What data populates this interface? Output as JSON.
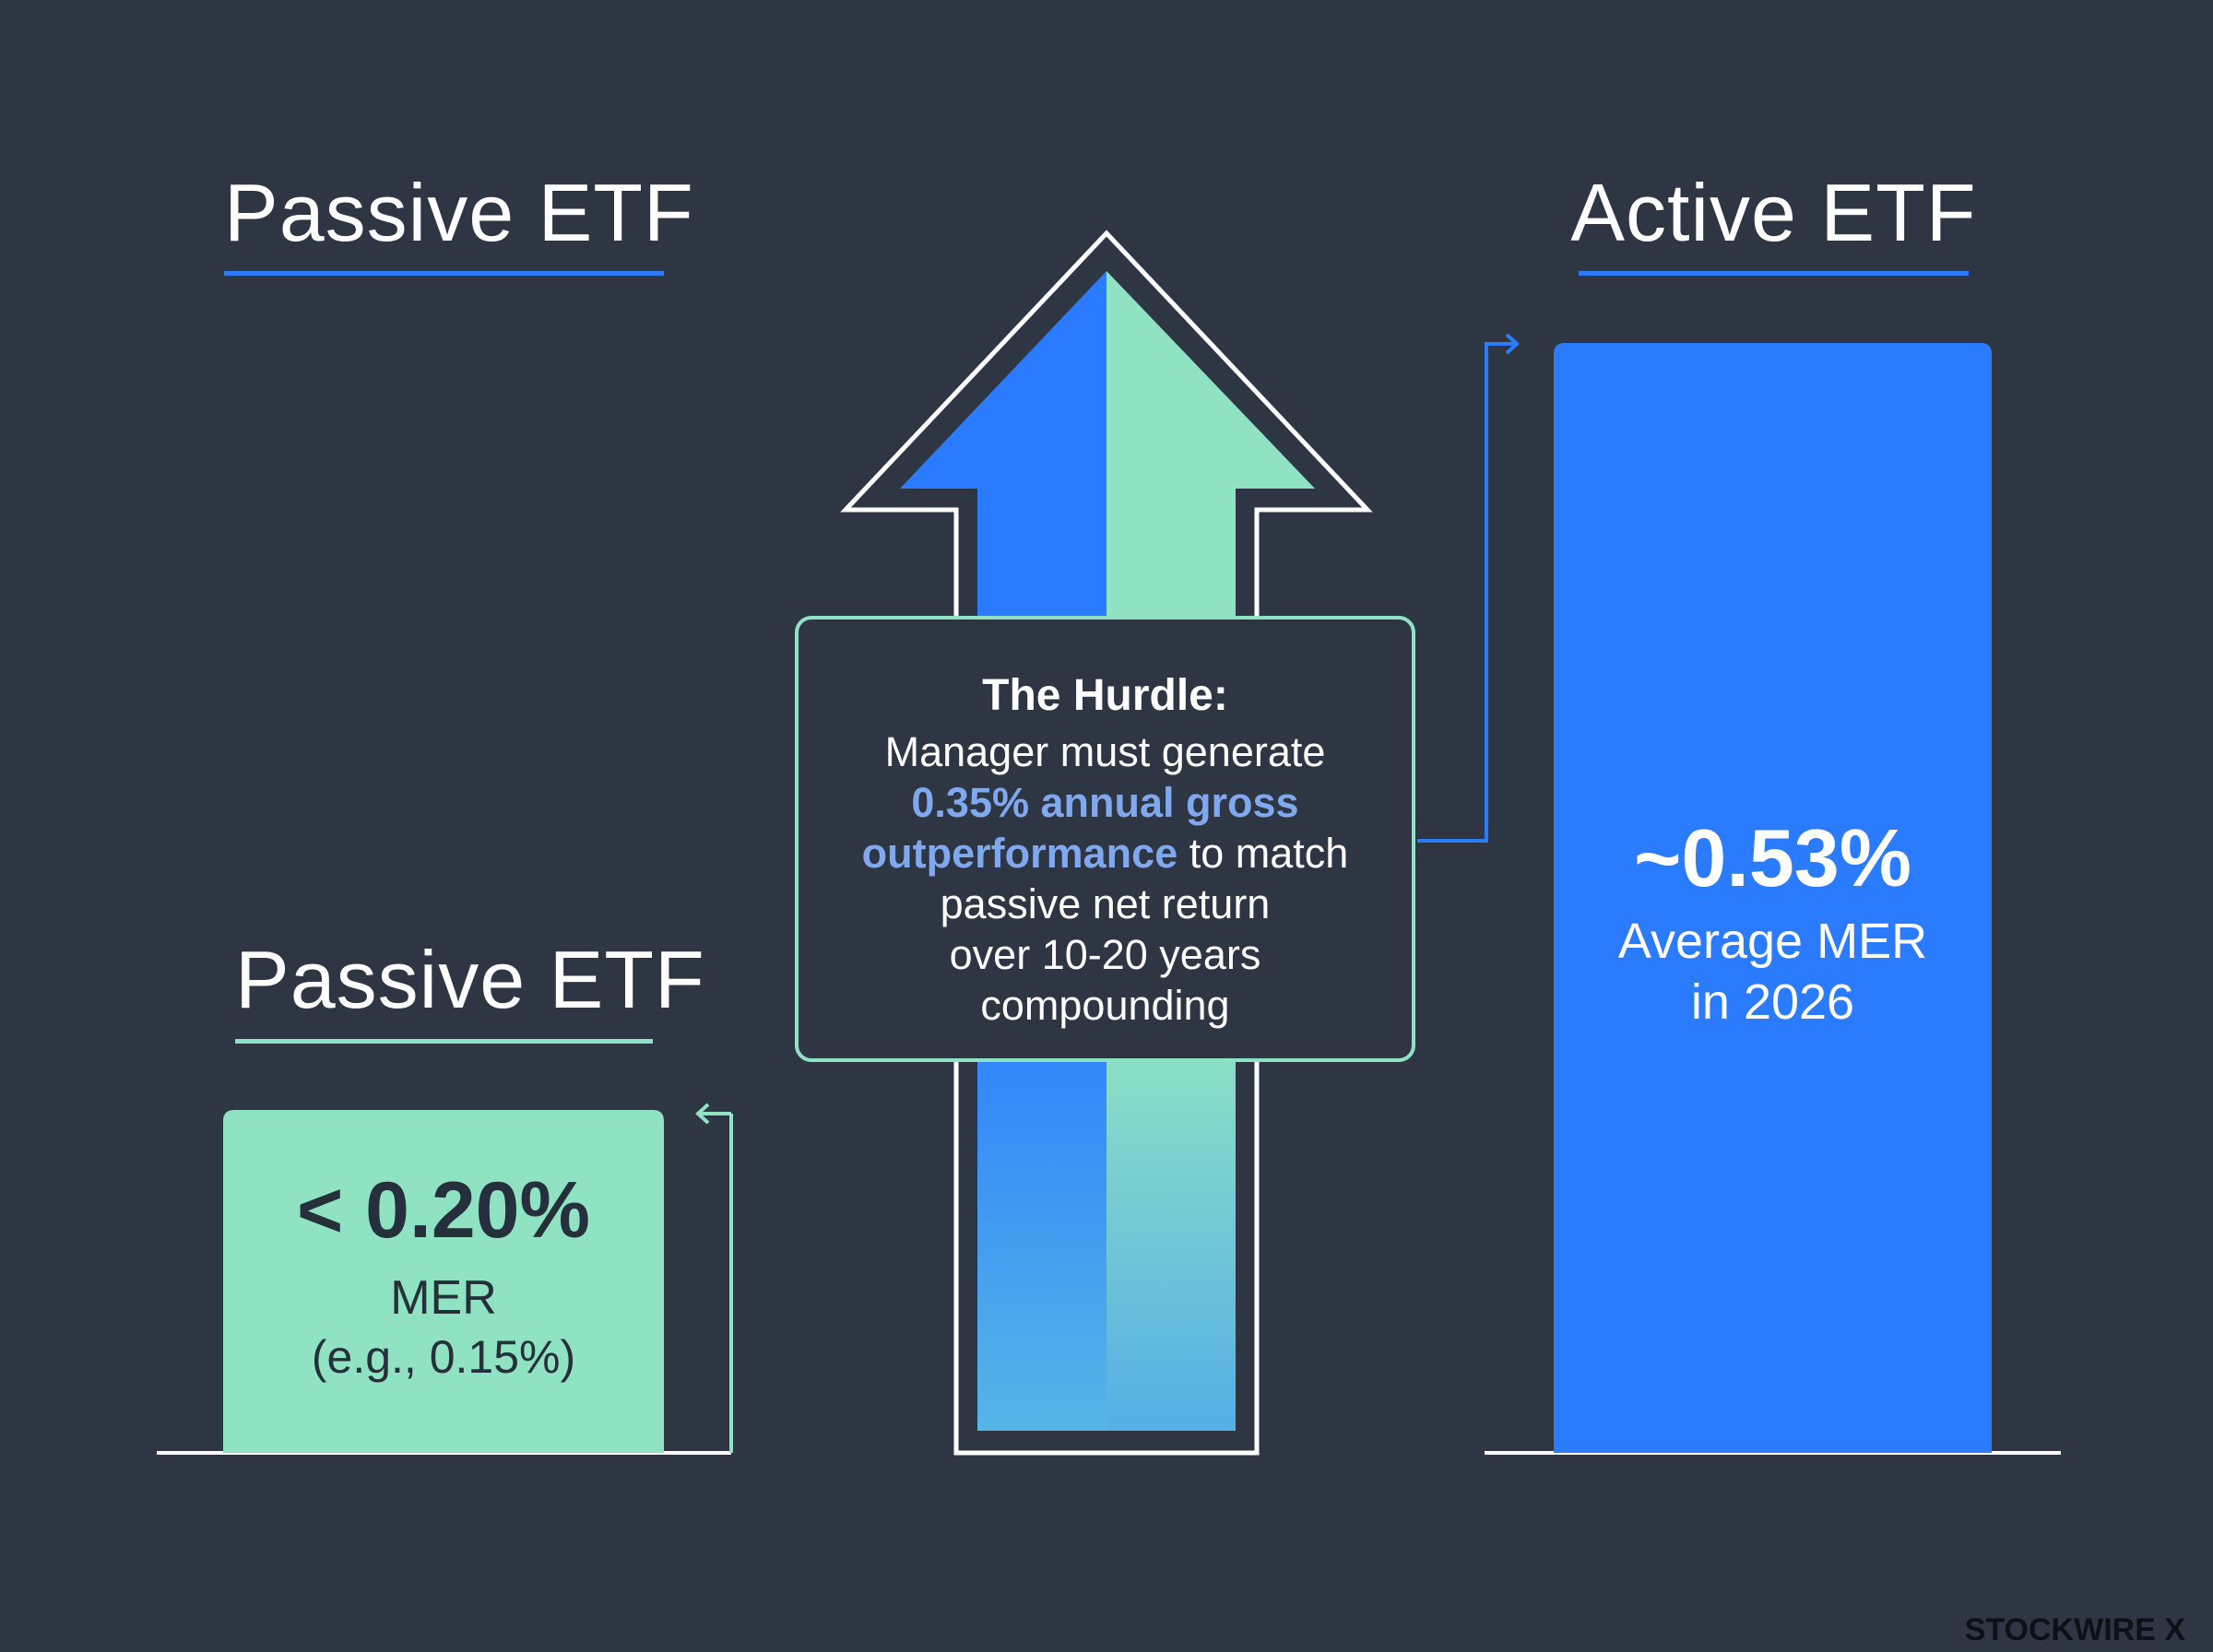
{
  "left_column": {
    "top_title": "Passive ETF",
    "bottom_title": "Passive ETF",
    "box": {
      "value": "< 0.20%",
      "label": "MER",
      "example": "(e.g., 0.15%)"
    }
  },
  "right_column": {
    "title": "Active ETF",
    "box": {
      "value": "~0.53%",
      "label_line1": "Average MER",
      "label_line2": "in 2026"
    }
  },
  "hurdle": {
    "title": "The Hurdle:",
    "line1": "Manager must generate",
    "highlight1": "0.35% annual gross",
    "highlight2": "outperformance",
    "line3_rest": " to match",
    "line4": "passive net return",
    "line5": "over 10-20 years",
    "line6": "compounding"
  },
  "watermark": "STOCKWIRE X",
  "colors": {
    "background": "#2e3643",
    "blue": "#2b7bff",
    "green": "#8fe3c3",
    "white": "#ffffff",
    "highlight_text": "#7fa8ee"
  }
}
